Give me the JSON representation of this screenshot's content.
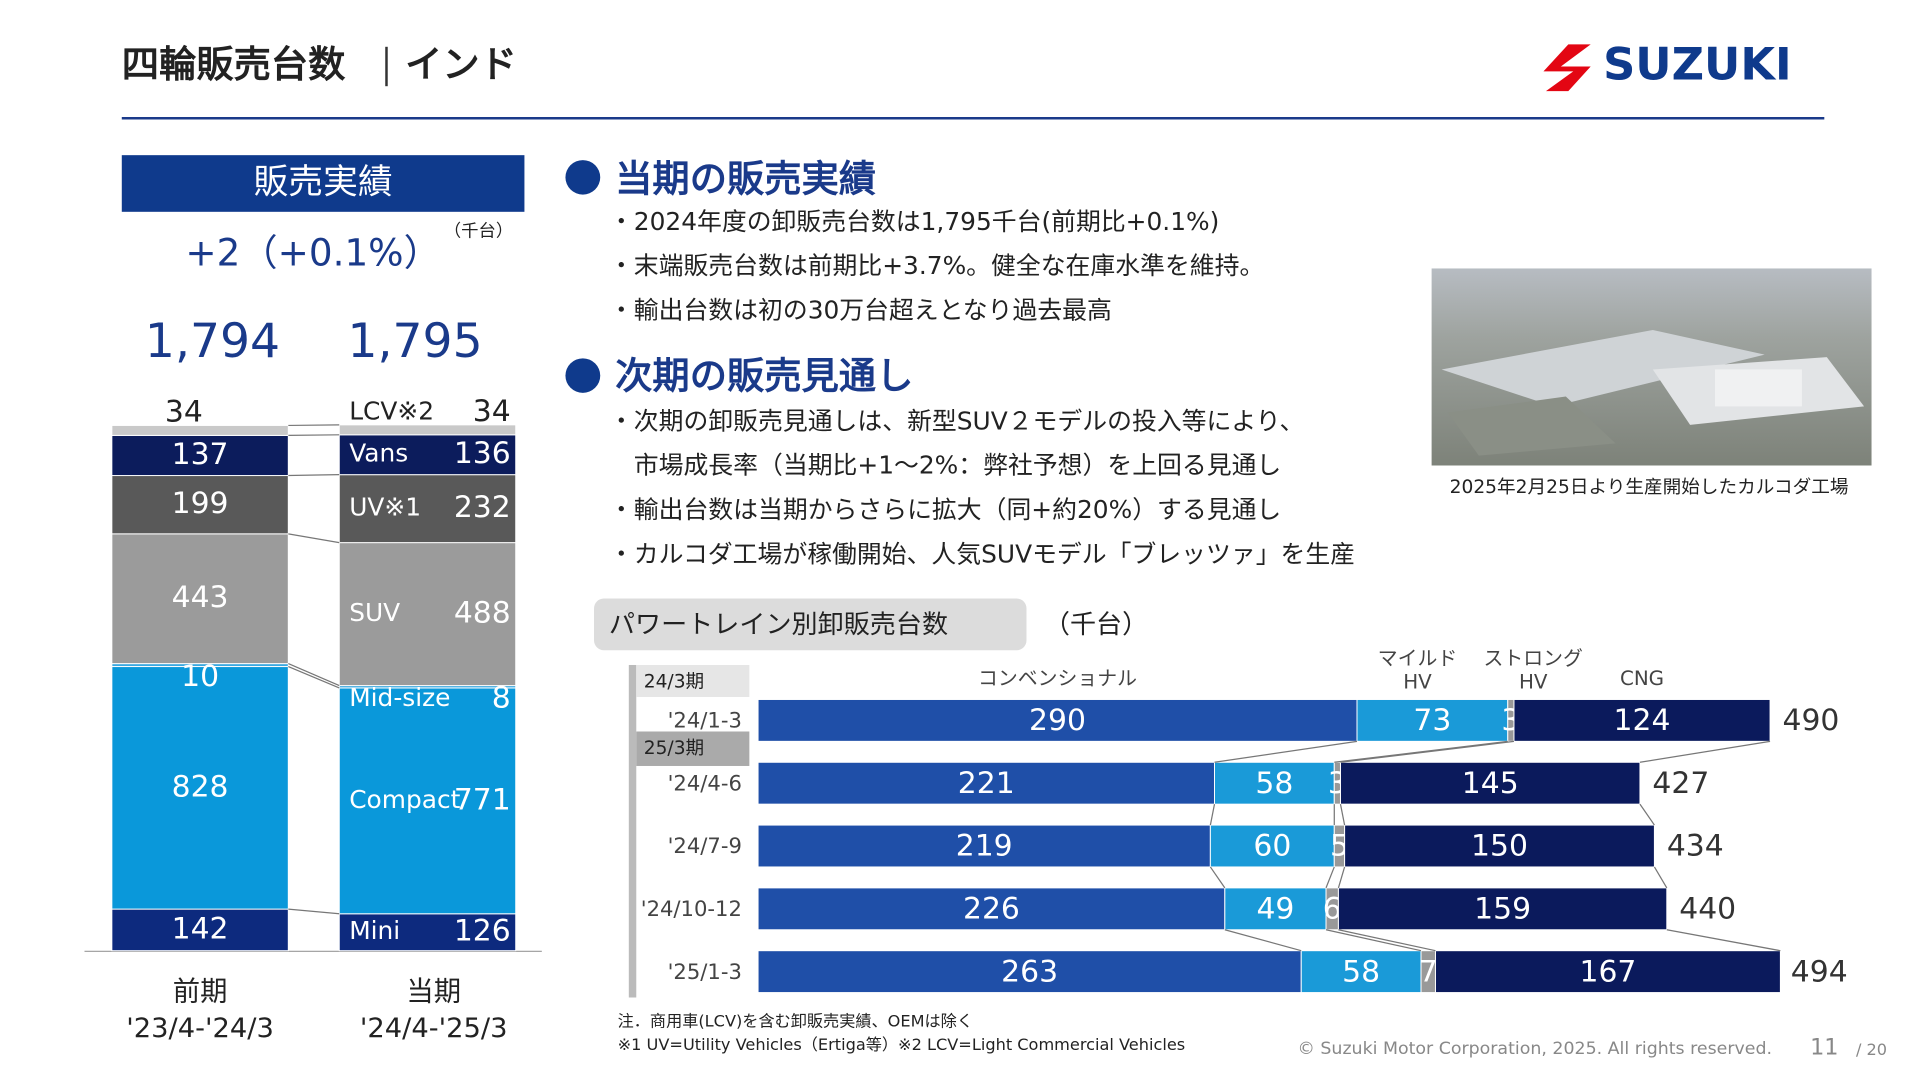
{
  "header": {
    "title": "四輪販売台数",
    "region": "インド",
    "logo": "SUZUKI"
  },
  "section1": {
    "heading": "当期の販売実績",
    "bullets": [
      "・2024年度の卸販売台数は1,795千台(前期比+0.1%)",
      "・末端販売台数は前期比+3.7%。健全な在庫水準を維持。",
      "・輸出台数は初の30万台超えとなり過去最高"
    ]
  },
  "section2": {
    "heading": "次期の販売見通し",
    "bullets": [
      "・次期の卸販売見通しは、新型SUV２モデルの投入等により、",
      "　市場成長率（当期比+1～2%：弊社予想）を上回る見通し",
      "・輸出台数は当期からさらに拡大（同+約20%）する見通し",
      "・カルコダ工場が稼働開始、人気SUVモデル「ブレッツァ」を生産"
    ]
  },
  "photo_caption": "2025年2月25日より生産開始したカルコダ工場",
  "notes": [
    "注．商用車(LCV)を含む卸販売実績、OEMは除く",
    "※1 UV=Utility Vehicles（Ertiga等）※2 LCV=Light Commercial Vehicles"
  ],
  "footer": {
    "copyright": "© Suzuki Motor Corporation, 2025. All rights reserved.",
    "page": "11",
    "total": "/ 20"
  },
  "chart_data": [
    {
      "type": "stacked-bar",
      "title": "販売実績",
      "subtitle": "+2（+0.1%）",
      "unit": "（千台）",
      "categories": [
        "前期\n'23/4-'24/3",
        "当期\n'24/4-'25/3"
      ],
      "totals": {
        "values": [
          1794,
          1795
        ],
        "value_labels": [
          "1,794",
          "1,795"
        ]
      },
      "series": [
        {
          "name": "Mini",
          "color": "#0d2a7e",
          "values": [
            142,
            126
          ]
        },
        {
          "name": "Compact",
          "color": "#0a98da",
          "values": [
            828,
            771
          ]
        },
        {
          "name": "Mid-size",
          "color": "#3aa8e0",
          "values": [
            10,
            8
          ]
        },
        {
          "name": "SUV",
          "color": "#9b9b9b",
          "values": [
            443,
            488
          ]
        },
        {
          "name": "UV※1",
          "color": "#595959",
          "values": [
            199,
            232
          ]
        },
        {
          "name": "Vans",
          "color": "#0c1c5c",
          "values": [
            137,
            136
          ]
        },
        {
          "name": "LCV※2",
          "color": "#c9c9c9",
          "values": [
            34,
            34
          ]
        }
      ]
    },
    {
      "type": "stacked-hbar",
      "title": "パワートレイン別卸販売台数",
      "unit": "（千台）",
      "group_labels": [
        "24/3期",
        "25/3期"
      ],
      "categories": [
        "'24/1-3",
        "'24/4-6",
        "'24/7-9",
        "'24/10-12",
        "'25/1-3"
      ],
      "totals": {
        "values": [
          490,
          427,
          434,
          440,
          494
        ]
      },
      "series": [
        {
          "name": "コンベンショナル",
          "color": "#1f4fa8",
          "values": [
            290,
            221,
            219,
            226,
            263
          ]
        },
        {
          "name": "マイルド\nHV",
          "color": "#1a9ad8",
          "values": [
            73,
            58,
            60,
            49,
            58
          ]
        },
        {
          "name": "ストロング\nHV",
          "color": "#999999",
          "values": [
            3,
            3,
            5,
            6,
            7
          ]
        },
        {
          "name": "CNG",
          "color": "#0b1a5c",
          "values": [
            124,
            145,
            150,
            159,
            167
          ]
        }
      ]
    }
  ]
}
